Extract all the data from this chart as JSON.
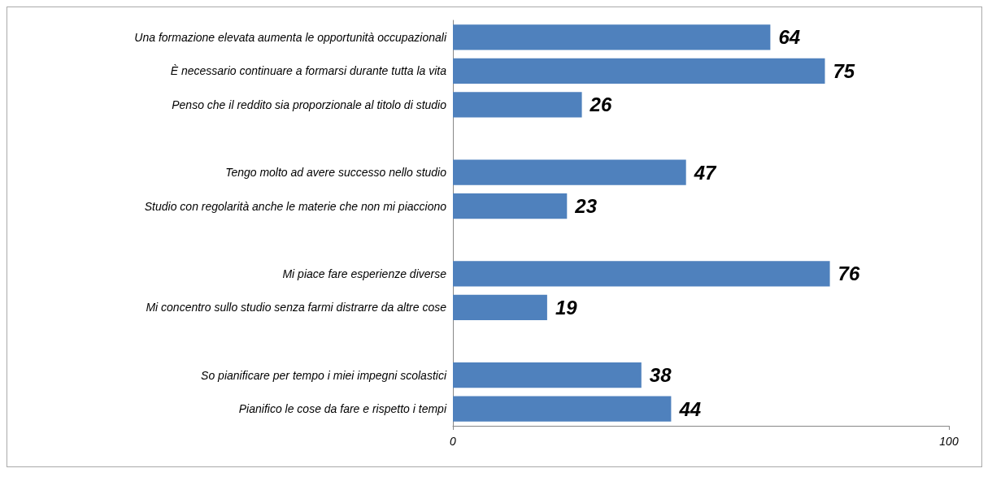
{
  "chart_data": {
    "type": "bar",
    "orientation": "horizontal",
    "categories": [
      "Una formazione elevata aumenta le opportunità occupazionali",
      "È necessario continuare a formarsi durante tutta la vita",
      "Penso che il reddito sia proporzionale al titolo di studio",
      null,
      "Tengo molto ad avere successo nello studio",
      "Studio con regolarità anche le materie che non mi piacciono",
      null,
      "Mi piace fare esperienze diverse",
      "Mi concentro sullo studio senza farmi distrarre da altre cose",
      null,
      "So pianificare per tempo i miei impegni scolastici",
      "Pianifico le cose da fare e rispetto i tempi"
    ],
    "values": [
      64,
      75,
      26,
      null,
      47,
      23,
      null,
      76,
      19,
      null,
      38,
      44
    ],
    "color": "#4f81bd",
    "xlim": [
      0,
      100
    ],
    "xticks": [
      0,
      100
    ],
    "data_labels": true,
    "grid": false
  }
}
